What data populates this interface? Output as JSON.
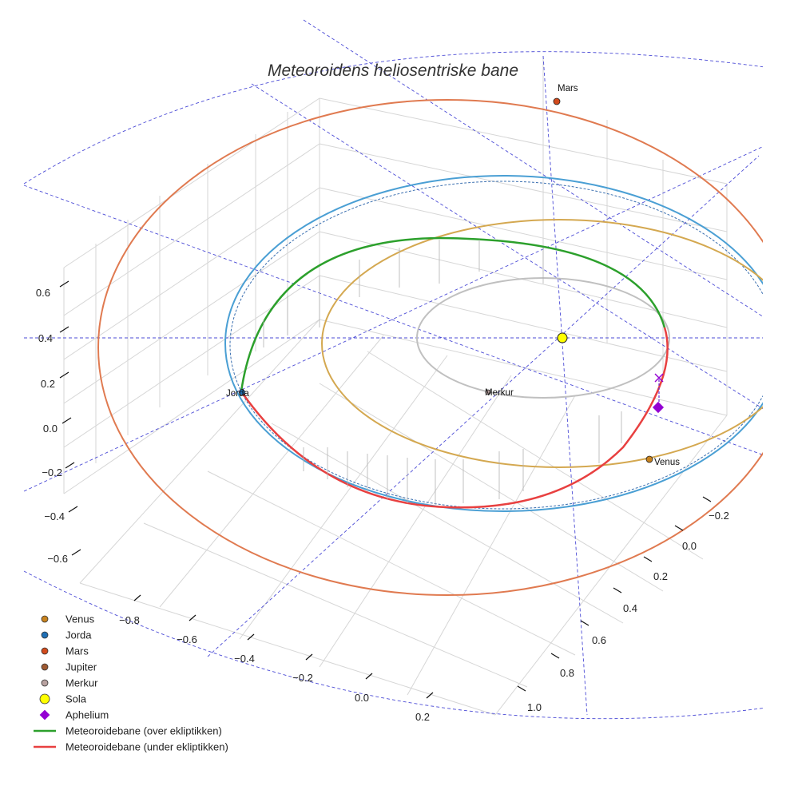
{
  "chart_data": {
    "type": "scatter3d",
    "title": "Meteoroidens heliosentriske bane",
    "axes": {
      "x_ticks": [
        "−0.8",
        "−0.6",
        "−0.4",
        "−0.2",
        "0.0",
        "0.2"
      ],
      "y_ticks": [
        "−0.2",
        "0.0",
        "0.2",
        "0.4",
        "0.6",
        "0.8",
        "1.0"
      ],
      "z_ticks": [
        "0.6",
        "0.4",
        "0.2",
        "0.0",
        "−0.2",
        "−0.4",
        "−0.6"
      ],
      "grid": true
    },
    "bodies": [
      {
        "name": "Venus",
        "label": "Venus",
        "color": "#c8831f"
      },
      {
        "name": "Jorda",
        "label": "Jorda",
        "color": "#1f6fb5"
      },
      {
        "name": "Mars",
        "label": "Mars",
        "color": "#d24a1c"
      },
      {
        "name": "Merkur",
        "label": "Merkur",
        "color": "#b8a2a0"
      }
    ],
    "sun": {
      "name": "Sola",
      "color": "#ffff00"
    },
    "orbits": {
      "mars_color": "#e07a50",
      "earth_color": "#4a9fd4",
      "venus_color": "#d4a850",
      "mercury_color": "#c0c0c0",
      "meteoroid_above_color": "#2ca02c",
      "meteoroid_below_color": "#e84040"
    },
    "aphelion": {
      "name": "Aphelium",
      "color": "#9400d3"
    },
    "legend": [
      {
        "label": "Venus",
        "marker": "dot",
        "color": "#c8831f"
      },
      {
        "label": "Jorda",
        "marker": "dot",
        "color": "#1f6fb5"
      },
      {
        "label": "Mars",
        "marker": "dot",
        "color": "#d24a1c"
      },
      {
        "label": "Jupiter",
        "marker": "dot",
        "color": "#9e5a32"
      },
      {
        "label": "Merkur",
        "marker": "dot",
        "color": "#b8a2a0"
      },
      {
        "label": "Sola",
        "marker": "big-dot",
        "color": "#ffff00"
      },
      {
        "label": "Aphelium",
        "marker": "diamond",
        "color": "#9400d3"
      },
      {
        "label": "Meteoroidebane (over ekliptikken)",
        "marker": "line",
        "color": "#2ca02c"
      },
      {
        "label": "Meteoroidebane (under ekliptikken)",
        "marker": "line",
        "color": "#e84040"
      }
    ],
    "legend_position": "bottom-left"
  }
}
